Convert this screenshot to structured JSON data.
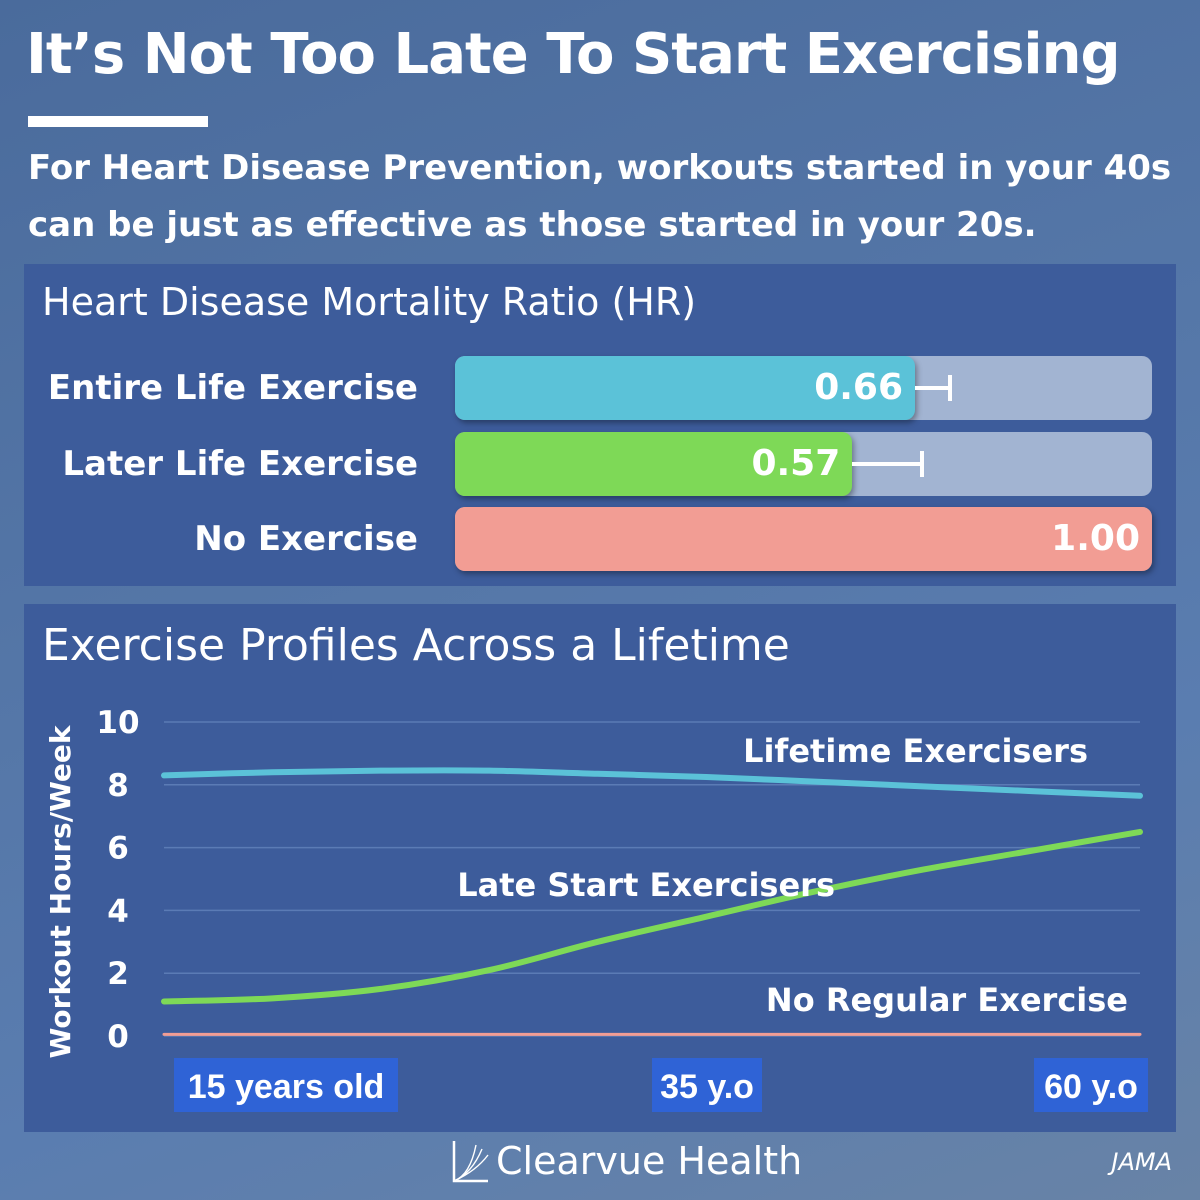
{
  "title": "It’s Not Too Late To Start Exercising",
  "subtitle": "For Heart Disease Prevention, workouts started in your 40s can be just as effective as those started in your 20s.",
  "colors": {
    "background": "#5577a8",
    "panel": "#3d5c9b",
    "track": "#a2b4d2",
    "entire_life": "#5bc2d8",
    "later_life": "#7ed957",
    "no_exercise": "#f29d94",
    "gridline": "#5b7bb5"
  },
  "brand": {
    "name": "Clearvue Health",
    "icon": "clearvue-logo-icon"
  },
  "source": "JAMA",
  "chart_data": [
    {
      "type": "bar",
      "orientation": "horizontal",
      "title": "Heart Disease Mortality Ratio (HR)",
      "categories": [
        "Entire Life Exercise",
        "Later Life Exercise",
        "No Exercise"
      ],
      "values": [
        0.66,
        0.57,
        1.0
      ],
      "value_labels": [
        "0.66",
        "0.57",
        "1.00"
      ],
      "error_bar_upper": [
        0.71,
        0.67,
        null
      ],
      "xlim": [
        0,
        1
      ],
      "colors": [
        "#5bc2d8",
        "#7ed957",
        "#f29d94"
      ]
    },
    {
      "type": "line",
      "title": "Exercise Profiles Across a Lifetime",
      "ylabel": "Workout Hours/Week",
      "ylim": [
        0,
        10
      ],
      "yticks": [
        "0",
        "2",
        "4",
        "6",
        "8",
        "10"
      ],
      "xlim": [
        15,
        60
      ],
      "xtick_labels": [
        {
          "x": 15,
          "label": "15 years old"
        },
        {
          "x": 35,
          "label": "35 y.o"
        },
        {
          "x": 60,
          "label": "60 y.o"
        }
      ],
      "grid": true,
      "series": [
        {
          "name": "Lifetime Exercisers",
          "color": "#5bc2d8",
          "x": [
            15,
            20,
            25,
            30,
            35,
            40,
            45,
            50,
            55,
            60
          ],
          "y": [
            8.3,
            8.4,
            8.45,
            8.45,
            8.35,
            8.25,
            8.1,
            7.95,
            7.8,
            7.65
          ]
        },
        {
          "name": "Late Start Exercisers",
          "color": "#7ed957",
          "x": [
            15,
            20,
            25,
            30,
            35,
            40,
            45,
            50,
            55,
            60
          ],
          "y": [
            1.1,
            1.2,
            1.5,
            2.1,
            3.0,
            3.8,
            4.6,
            5.3,
            5.9,
            6.5
          ]
        },
        {
          "name": "No Regular Exercise",
          "color": "#f29d94",
          "x": [
            15,
            60
          ],
          "y": [
            0.05,
            0.05
          ]
        }
      ]
    }
  ]
}
